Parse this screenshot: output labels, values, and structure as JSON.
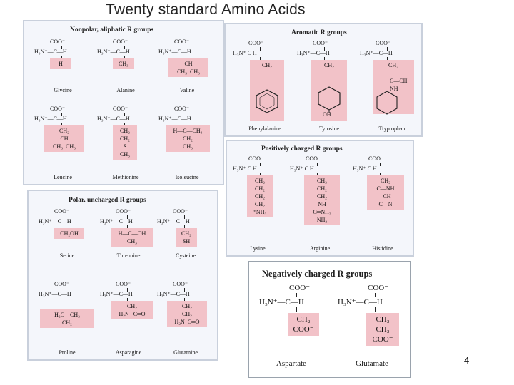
{
  "slide": {
    "title": "Twenty standard Amino Acids",
    "page_number": "4"
  },
  "common": {
    "coo": "COO⁻",
    "coo_plain": "COO",
    "alpha_row": "H₃N⁺—C—H",
    "alpha_row_short": "H₃N⁺  C   H"
  },
  "colors": {
    "highlight": "#f2c2c8",
    "panel_bg": "#f4f6fb",
    "panel_border": "#c9d0dc"
  },
  "groups": {
    "nonpolar": {
      "title": "Nonpolar, aliphatic R groups",
      "amino_acids": [
        {
          "name": "Glycine",
          "display": "Glycine",
          "r": "H"
        },
        {
          "name": "Alanine",
          "display": "Alanine",
          "r": "CH₃"
        },
        {
          "name": "Valine",
          "display": "Valine",
          "r": "CH\nCH₃  CH₃"
        },
        {
          "name": "Leucine",
          "display": "Leucine",
          "r": "CH₂\nCH\nCH₃  CH₃"
        },
        {
          "name": "Methionine",
          "display": "Methionine",
          "r": "CH₂\nCH₂\nS\nCH₃"
        },
        {
          "name": "Isoleucine",
          "display": "Isoleucine",
          "r": "H—C—CH₃\nCH₂\nCH₃"
        }
      ]
    },
    "aromatic": {
      "title": "Aromatic R groups",
      "amino_acids": [
        {
          "name": "Phenylalanine",
          "display": "Phenylalanine",
          "r": "CH₂"
        },
        {
          "name": "Tyrosine",
          "display": "Tyrosine",
          "r": "CH₂",
          "tail": "OH"
        },
        {
          "name": "Tryptophan",
          "display": "Tryptophan",
          "r": "CH₂",
          "tail": "C—CH\nNH"
        }
      ]
    },
    "positive": {
      "title": "Positively charged R groups",
      "amino_acids": [
        {
          "name": "Lysine",
          "display": "Lysine",
          "r": "CH₂\nCH₂\nCH₂\nCH₂\n⁺NH₃"
        },
        {
          "name": "Arginine",
          "display": "Arginine",
          "r": "CH₂\nCH₂\nCH₂\nNH\nC═NH₂\nNH₂"
        },
        {
          "name": "Histidine",
          "display": "Histidine",
          "r": "CH₂\nC—NH\n  CH\nC    N"
        }
      ]
    },
    "polar": {
      "title": "Polar, uncharged R groups",
      "amino_acids": [
        {
          "name": "Serine",
          "display": "Serine",
          "r": "CH₂OH"
        },
        {
          "name": "Threonine",
          "display": "Threonine",
          "r": "H—C—OH\nCH₃"
        },
        {
          "name": "Cysteine",
          "display": "Cysteine",
          "r": "CH₂\nSH"
        },
        {
          "name": "Proline",
          "display": "Proline",
          "r": "H₂C    CH₂\nCH₂"
        },
        {
          "name": "Asparagine",
          "display": "Asparagine",
          "r": "CH₂\nH₂N   C═O"
        },
        {
          "name": "Glutamine",
          "display": "Glutamine",
          "r": "CH₂\nCH₂\nH₂N  C═O"
        }
      ]
    },
    "negative": {
      "title": "Negatively charged R groups",
      "amino_acids": [
        {
          "name": "Aspartate",
          "display": "Aspartate",
          "r": "CH₂\nCOO⁻"
        },
        {
          "name": "Glutamate",
          "display": "Glutamate",
          "r": "CH₂\nCH₂\nCOO⁻"
        }
      ]
    }
  }
}
